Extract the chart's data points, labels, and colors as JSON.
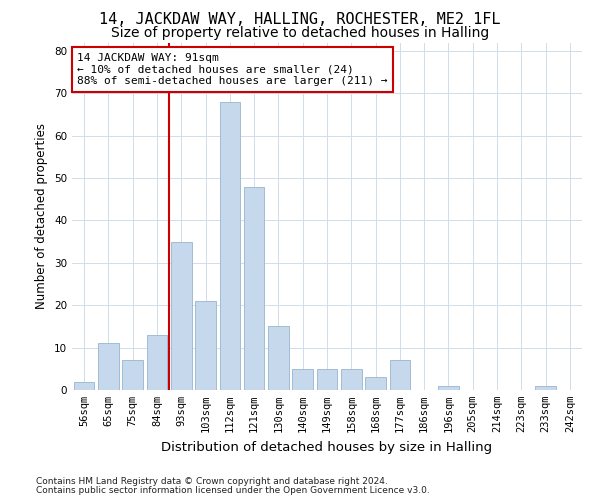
{
  "title1": "14, JACKDAW WAY, HALLING, ROCHESTER, ME2 1FL",
  "title2": "Size of property relative to detached houses in Halling",
  "xlabel": "Distribution of detached houses by size in Halling",
  "ylabel": "Number of detached properties",
  "footnote1": "Contains HM Land Registry data © Crown copyright and database right 2024.",
  "footnote2": "Contains public sector information licensed under the Open Government Licence v3.0.",
  "bar_labels": [
    "56sqm",
    "65sqm",
    "75sqm",
    "84sqm",
    "93sqm",
    "103sqm",
    "112sqm",
    "121sqm",
    "130sqm",
    "140sqm",
    "149sqm",
    "158sqm",
    "168sqm",
    "177sqm",
    "186sqm",
    "196sqm",
    "205sqm",
    "214sqm",
    "223sqm",
    "233sqm",
    "242sqm"
  ],
  "bar_values": [
    2,
    11,
    7,
    13,
    35,
    21,
    68,
    48,
    15,
    5,
    5,
    5,
    3,
    7,
    0,
    1,
    0,
    0,
    0,
    1,
    0
  ],
  "bar_color": "#c6d9ec",
  "bar_edge_color": "#a0bcd4",
  "grid_color": "#d0dce8",
  "vline_x_idx": 3.5,
  "vline_color": "#cc0000",
  "annotation_line1": "14 JACKDAW WAY: 91sqm",
  "annotation_line2": "← 10% of detached houses are smaller (24)",
  "annotation_line3": "88% of semi-detached houses are larger (211) →",
  "annotation_box_color": "#ffffff",
  "annotation_box_edge": "#cc0000",
  "ylim": [
    0,
    82
  ],
  "yticks": [
    0,
    10,
    20,
    30,
    40,
    50,
    60,
    70,
    80
  ],
  "background_color": "#ffffff",
  "title1_fontsize": 11,
  "title2_fontsize": 10,
  "xlabel_fontsize": 9.5,
  "ylabel_fontsize": 8.5,
  "tick_fontsize": 7.5,
  "annotation_fontsize": 8,
  "footnote_fontsize": 6.5
}
